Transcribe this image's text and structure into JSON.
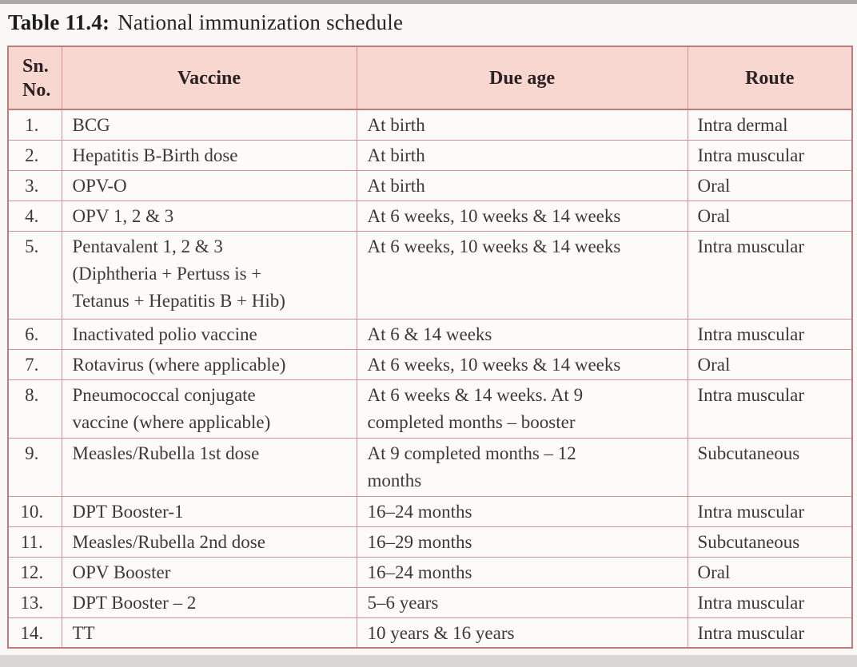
{
  "title": {
    "label": "Table 11.4:",
    "text": "National immunization schedule"
  },
  "table": {
    "headers": {
      "sn": "Sn.\nNo.",
      "vaccine": "Vaccine",
      "due_age": "Due age",
      "route": "Route"
    },
    "rows": [
      {
        "sn": "1.",
        "vaccine": "BCG",
        "due_age": "At birth",
        "route": "Intra dermal"
      },
      {
        "sn": "2.",
        "vaccine": "Hepatitis B-Birth dose",
        "due_age": "At birth",
        "route": "Intra muscular"
      },
      {
        "sn": "3.",
        "vaccine": "OPV-O",
        "due_age": "At birth",
        "route": "Oral"
      },
      {
        "sn": "4.",
        "vaccine": "OPV 1, 2 & 3",
        "due_age": "At 6 weeks, 10 weeks & 14 weeks",
        "route": "Oral"
      },
      {
        "sn": "5.",
        "vaccine": "Pentavalent 1, 2 & 3\n(Diphtheria + Pertuss is +\nTetanus + Hepatitis B + Hib)",
        "due_age": "At 6 weeks, 10 weeks & 14 weeks",
        "route": "Intra muscular"
      },
      {
        "sn": "6.",
        "vaccine": "Inactivated polio vaccine",
        "due_age": "At 6 & 14 weeks",
        "route": "Intra muscular"
      },
      {
        "sn": "7.",
        "vaccine": "Rotavirus (where applicable)",
        "due_age": "At 6 weeks, 10 weeks & 14 weeks",
        "route": "Oral"
      },
      {
        "sn": "8.",
        "vaccine": "Pneumococcal conjugate\nvaccine (where applicable)",
        "due_age": "At 6 weeks & 14 weeks. At 9\ncompleted months – booster",
        "route": "Intra muscular"
      },
      {
        "sn": "9.",
        "vaccine": "Measles/Rubella 1st dose",
        "due_age": "At 9 completed months – 12\nmonths",
        "route": "Subcutaneous"
      },
      {
        "sn": "10.",
        "vaccine": "DPT Booster-1",
        "due_age": "16–24 months",
        "route": "Intra muscular"
      },
      {
        "sn": "11.",
        "vaccine": "Measles/Rubella 2nd dose",
        "due_age": "16–29 months",
        "route": "Subcutaneous"
      },
      {
        "sn": "12.",
        "vaccine": "OPV Booster",
        "due_age": "16–24 months",
        "route": "Oral"
      },
      {
        "sn": "13.",
        "vaccine": "DPT Booster – 2",
        "due_age": "5–6 years",
        "route": "Intra muscular"
      },
      {
        "sn": "14.",
        "vaccine": "TT",
        "due_age": "10 years & 16 years",
        "route": "Intra muscular"
      }
    ]
  },
  "colors": {
    "header_bg": "#f8d7d1",
    "border": "#cf9494",
    "border_outer": "#bd7c7c",
    "text": "#3a3a3a",
    "title_text": "#1d1d1d",
    "cell_bg": "#fcfbf9",
    "page_bg": "#f9f8f6"
  }
}
